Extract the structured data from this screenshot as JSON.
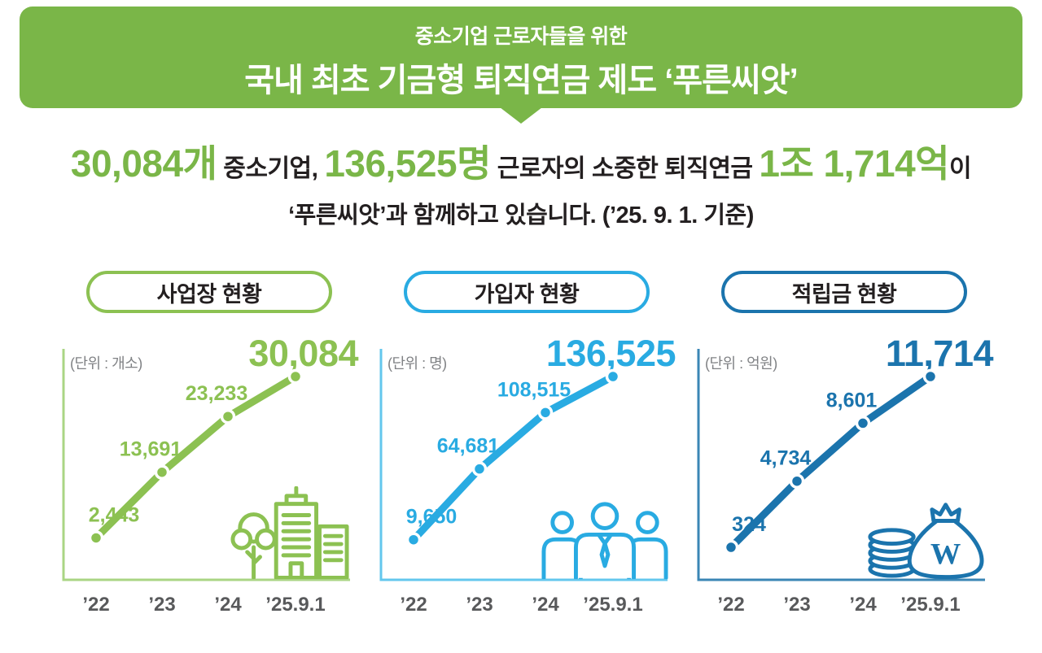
{
  "banner": {
    "tagline": "중소기업 근로자들을 위한",
    "title": "국내 최초 기금형 퇴직연금 제도 ‘푸른씨앗’",
    "bg_color": "#7ab648",
    "text_color": "#ffffff"
  },
  "summary": {
    "highlight_color": "#7ab648",
    "text_color": "#231f20",
    "line1": [
      {
        "text": "30,084개"
      },
      {
        "text": " 중소기업, "
      },
      {
        "text": "136,525명"
      },
      {
        "text": " 근로자의 소중한 퇴직연금 "
      },
      {
        "text": "1조 1,714억"
      },
      {
        "text": "이"
      }
    ],
    "line2": "‘푸른씨앗’과 함께하고 있습니다. (’25. 9. 1. 기준)"
  },
  "chart_style": {
    "tick_color": "#58595b",
    "unit_color": "#808285",
    "grid": false,
    "legend": "none"
  },
  "chart_data": [
    {
      "type": "line",
      "title": "사업장 현황",
      "unit_label": "(단위 : 개소)",
      "categories": [
        "’22",
        "’23",
        "’24",
        "’25.9.1"
      ],
      "values": [
        2443,
        13691,
        23233,
        30084
      ],
      "value_labels": [
        "2,443",
        "13,691",
        "23,233"
      ],
      "big_value": "30,084",
      "ylim": [
        0,
        30084
      ],
      "color": "#8cc152",
      "axis_color": "#aad584",
      "icon": "buildings-tree-icon"
    },
    {
      "type": "line",
      "title": "가입자 현황",
      "unit_label": "(단위 : 명)",
      "categories": [
        "’22",
        "’23",
        "’24",
        "’25.9.1"
      ],
      "values": [
        9650,
        64681,
        108515,
        136525
      ],
      "value_labels": [
        "9,650",
        "64,681",
        "108,515"
      ],
      "big_value": "136,525",
      "ylim": [
        0,
        136525
      ],
      "color": "#29abe2",
      "axis_color": "#63c7ed",
      "icon": "people-group-icon"
    },
    {
      "type": "line",
      "title": "적립금 현황",
      "unit_label": "(단위 : 억원)",
      "categories": [
        "’22",
        "’23",
        "’24",
        "’25.9.1"
      ],
      "values": [
        324,
        4734,
        8601,
        11714
      ],
      "value_labels": [
        "324",
        "4,734",
        "8,601"
      ],
      "big_value": "11,714",
      "ylim": [
        0,
        11714
      ],
      "color": "#1b74ad",
      "axis_color": "#3a86b5",
      "icon": "money-bag-coins-icon"
    }
  ]
}
